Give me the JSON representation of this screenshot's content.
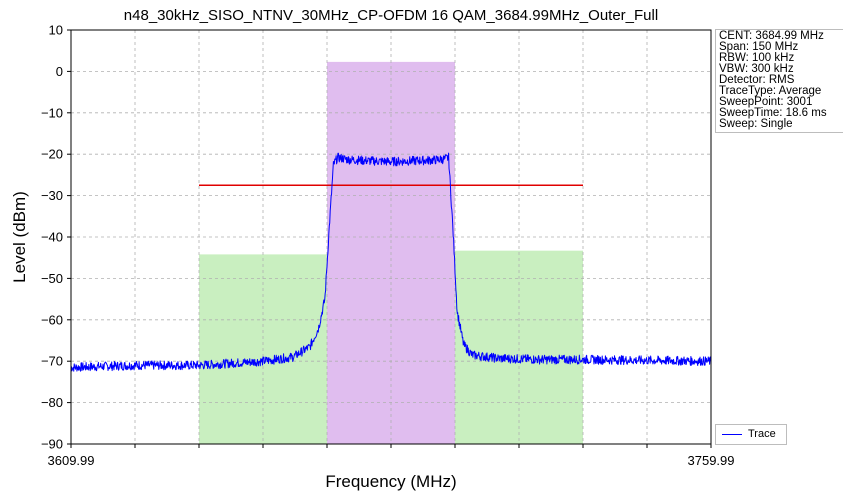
{
  "chart_data": {
    "type": "line",
    "title": "n48_30kHz_SISO_NTNV_30MHz_CP-OFDM 16 QAM_3684.99MHz_Outer_Full",
    "xlabel": "Frequency (MHz)",
    "ylabel": "Level (dBm)",
    "xlim": [
      3609.99,
      3759.99
    ],
    "ylim": [
      -90,
      10
    ],
    "x_tick_labels": [
      "3609.99",
      "3759.99"
    ],
    "x_minor_ticks": [
      3624.99,
      3639.99,
      3654.99,
      3669.99,
      3684.99,
      3699.99,
      3714.99,
      3729.99,
      3744.99
    ],
    "y_ticks": [
      10,
      0,
      -10,
      -20,
      -30,
      -40,
      -50,
      -60,
      -70,
      -80,
      -90
    ],
    "grid": true,
    "info_lines": [
      "CENT: 3684.99 MHz",
      "Span: 150 MHz",
      "RBW: 100 kHz",
      "VBW: 300 kHz",
      "Detector: RMS",
      "TraceType: Average",
      "SweepPoint: 3001",
      "SweepTime: 18.6 ms",
      "Sweep: Single"
    ],
    "legend": {
      "position": "lower-right",
      "entries": [
        "Trace"
      ]
    },
    "regions": [
      {
        "x_start": 3639.99,
        "x_end": 3669.99,
        "top": -44.2,
        "color": "#c9efc0"
      },
      {
        "x_start": 3669.99,
        "x_end": 3699.99,
        "top": 2.3,
        "color": "#e0bdef"
      },
      {
        "x_start": 3699.99,
        "x_end": 3729.99,
        "top": -43.3,
        "color": "#c9efc0"
      }
    ],
    "limit_line": {
      "x_start": 3639.99,
      "x_end": 3729.99,
      "y": -27.5,
      "color": "#e00000"
    },
    "series": [
      {
        "name": "Trace",
        "color": "#0000ff",
        "x": [
          3609.99,
          3625,
          3640,
          3655,
          3662,
          3666,
          3668,
          3669.5,
          3670.5,
          3671.5,
          3672.5,
          3675,
          3680,
          3685,
          3690,
          3695,
          3697.5,
          3698.5,
          3699.5,
          3700.5,
          3702,
          3704,
          3710,
          3720,
          3730,
          3745,
          3759.99
        ],
        "y": [
          -71.5,
          -71.0,
          -71.0,
          -70.0,
          -69.0,
          -66.5,
          -62.0,
          -55.0,
          -38.0,
          -22.5,
          -20.8,
          -21.3,
          -21.6,
          -21.8,
          -21.6,
          -21.4,
          -21.2,
          -20.8,
          -38.0,
          -58.0,
          -66.0,
          -68.5,
          -69.3,
          -69.6,
          -69.6,
          -69.8,
          -70.0
        ]
      }
    ]
  }
}
